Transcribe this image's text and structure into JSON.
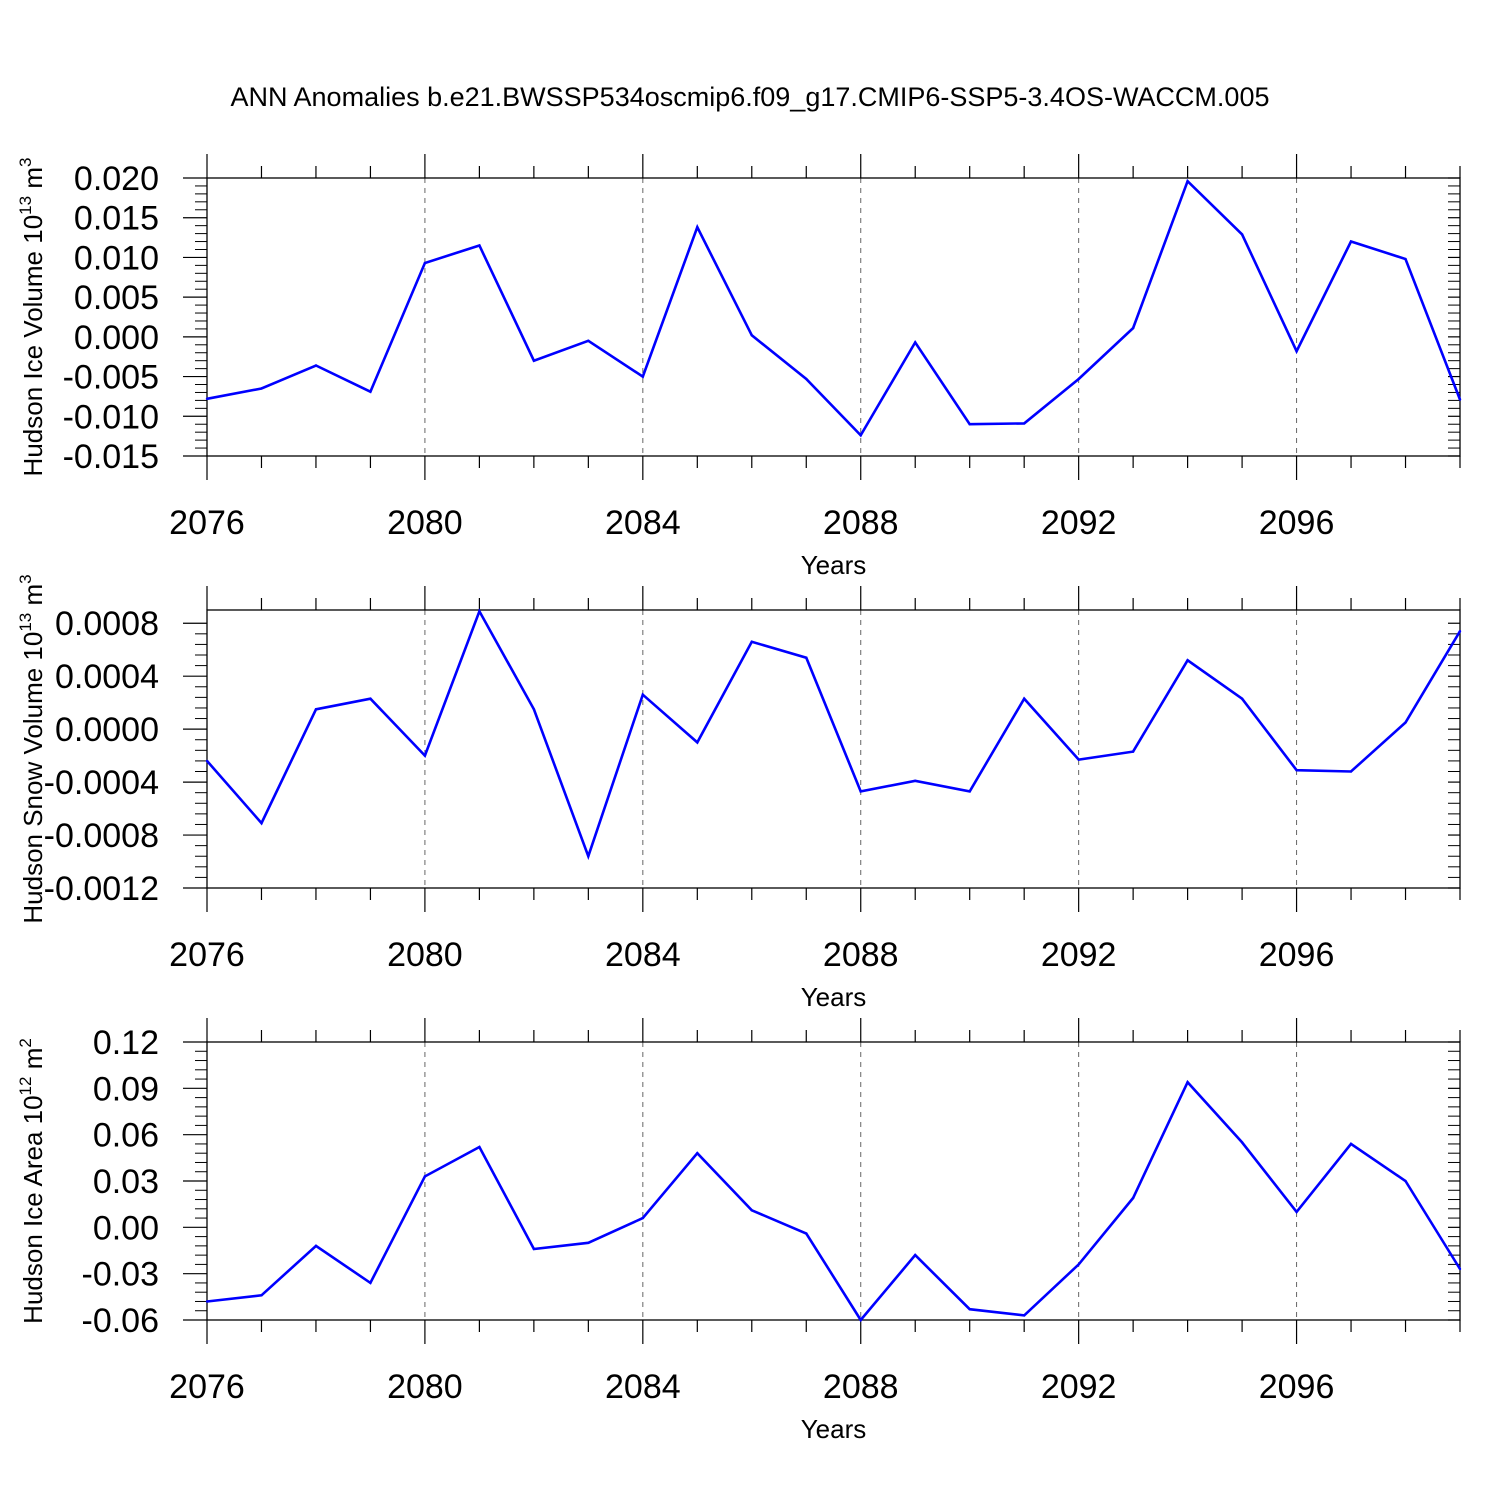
{
  "title": "ANN Anomalies b.e21.BWSSP534oscmip6.f09_g17.CMIP6-SSP5-3.4OS-WACCM.005",
  "line_color": "#0000ff",
  "chart_data": [
    {
      "type": "line",
      "title": "",
      "xlabel": "Years",
      "ylabel": {
        "base": "Hudson Ice Volume 10",
        "exp": "13",
        "unit": " m",
        "unit_exp": "3"
      },
      "xlim": [
        2076,
        2099
      ],
      "ylim": [
        -0.015,
        0.02
      ],
      "xticks": [
        2076,
        2080,
        2084,
        2088,
        2092,
        2096
      ],
      "xtick_labels": [
        "2076",
        "2080",
        "2084",
        "2088",
        "2092",
        "2096"
      ],
      "yticks": [
        -0.015,
        -0.01,
        -0.005,
        0.0,
        0.005,
        0.01,
        0.015,
        0.02
      ],
      "ytick_labels": [
        "-0.015",
        "-0.010",
        "-0.005",
        "0.000",
        "0.005",
        "0.010",
        "0.015",
        "0.020"
      ],
      "grid": "dashed vertical at major x ticks",
      "x": [
        2076,
        2077,
        2078,
        2079,
        2080,
        2081,
        2082,
        2083,
        2084,
        2085,
        2086,
        2087,
        2088,
        2089,
        2090,
        2091,
        2092,
        2093,
        2094,
        2095,
        2096,
        2097,
        2098,
        2099
      ],
      "values": [
        -0.0078,
        -0.0065,
        -0.0036,
        -0.0069,
        0.0093,
        0.0115,
        -0.003,
        -0.0005,
        -0.005,
        0.0138,
        0.0002,
        -0.0053,
        -0.0124,
        -0.0007,
        -0.011,
        -0.0109,
        -0.0053,
        0.0011,
        0.0196,
        0.0129,
        -0.0018,
        0.012,
        0.0098,
        -0.0079
      ]
    },
    {
      "type": "line",
      "title": "",
      "xlabel": "Years",
      "ylabel": {
        "base": "Hudson Snow Volume 10",
        "exp": "13",
        "unit": " m",
        "unit_exp": "3"
      },
      "xlim": [
        2076,
        2099
      ],
      "ylim": [
        -0.0012,
        0.0009
      ],
      "xticks": [
        2076,
        2080,
        2084,
        2088,
        2092,
        2096
      ],
      "xtick_labels": [
        "2076",
        "2080",
        "2084",
        "2088",
        "2092",
        "2096"
      ],
      "yticks": [
        -0.0012,
        -0.0008,
        -0.0004,
        0.0,
        0.0004,
        0.0008
      ],
      "ytick_labels": [
        "-0.0012",
        "-0.0008",
        "-0.0004",
        "0.0000",
        "0.0004",
        "0.0008"
      ],
      "grid": "dashed vertical at major x ticks",
      "x": [
        2076,
        2077,
        2078,
        2079,
        2080,
        2081,
        2082,
        2083,
        2084,
        2085,
        2086,
        2087,
        2088,
        2089,
        2090,
        2091,
        2092,
        2093,
        2094,
        2095,
        2096,
        2097,
        2098,
        2099
      ],
      "values": [
        -0.00024,
        -0.00071,
        0.00015,
        0.00023,
        -0.0002,
        0.00089,
        0.00015,
        -0.00096,
        0.00026,
        -0.0001,
        0.00066,
        0.00054,
        -0.00047,
        -0.00039,
        -0.00047,
        0.00023,
        -0.00023,
        -0.00017,
        0.00052,
        0.00023,
        -0.00031,
        -0.00032,
        5e-05,
        0.00074
      ]
    },
    {
      "type": "line",
      "title": "",
      "xlabel": "Years",
      "ylabel": {
        "base": "Hudson Ice Area 10",
        "exp": "12",
        "unit": " m",
        "unit_exp": "2"
      },
      "xlim": [
        2076,
        2099
      ],
      "ylim": [
        -0.06,
        0.12
      ],
      "xticks": [
        2076,
        2080,
        2084,
        2088,
        2092,
        2096
      ],
      "xtick_labels": [
        "2076",
        "2080",
        "2084",
        "2088",
        "2092",
        "2096"
      ],
      "yticks": [
        -0.06,
        -0.03,
        0.0,
        0.03,
        0.06,
        0.09,
        0.12
      ],
      "ytick_labels": [
        "-0.06",
        "-0.03",
        "0.00",
        "0.03",
        "0.06",
        "0.09",
        "0.12"
      ],
      "grid": "dashed vertical at major x ticks",
      "x": [
        2076,
        2077,
        2078,
        2079,
        2080,
        2081,
        2082,
        2083,
        2084,
        2085,
        2086,
        2087,
        2088,
        2089,
        2090,
        2091,
        2092,
        2093,
        2094,
        2095,
        2096,
        2097,
        2098,
        2099
      ],
      "values": [
        -0.048,
        -0.044,
        -0.012,
        -0.036,
        0.033,
        0.052,
        -0.014,
        -0.01,
        0.006,
        0.048,
        0.011,
        -0.004,
        -0.06,
        -0.018,
        -0.053,
        -0.057,
        -0.024,
        0.019,
        0.094,
        0.055,
        0.01,
        0.054,
        0.03,
        -0.027
      ]
    }
  ]
}
